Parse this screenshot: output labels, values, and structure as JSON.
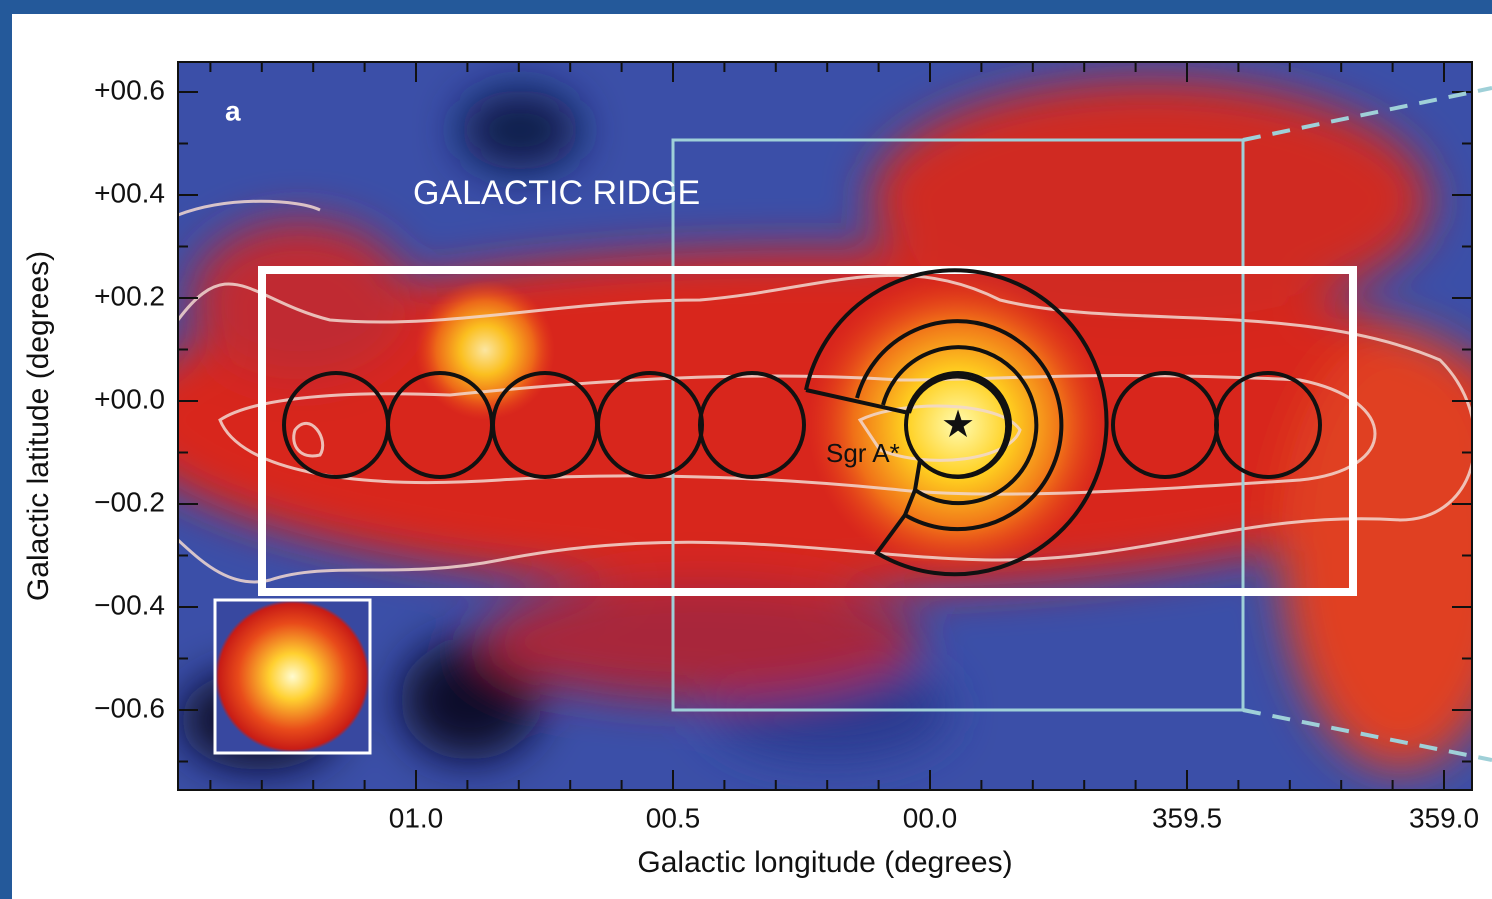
{
  "panel_label": "a",
  "annotations": {
    "region": "GALACTIC RIDGE",
    "source": "Sgr A*"
  },
  "x_axis": {
    "label": "Galactic longitude (degrees)",
    "ticks": [
      "01.0",
      "00.5",
      "00.0",
      "359.5",
      "359.0"
    ]
  },
  "y_axis": {
    "label": "Galactic latitude (degrees)",
    "ticks": [
      "+00.6",
      "+00.4",
      "+00.2",
      "+00.0",
      "−00.2",
      "−00.4",
      "−00.6"
    ]
  }
}
